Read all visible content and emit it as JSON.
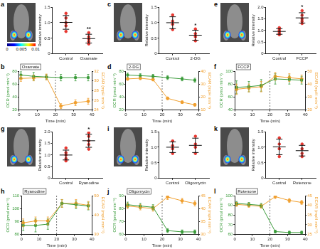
{
  "chart_data": [
    {
      "type": "scatter",
      "panel_label": "a",
      "categories": [
        "Control",
        "Oxamate"
      ],
      "points": [
        [
          1.3,
          1.15,
          1.0,
          0.9,
          0.72
        ],
        [
          0.68,
          0.55,
          0.48,
          0.4,
          0.32
        ]
      ],
      "means": [
        1.01,
        0.49
      ],
      "sd": [
        0.22,
        0.14
      ],
      "color": "#e8352e",
      "ylabel": "Relative intensity",
      "ylim": [
        0,
        1.5
      ],
      "yticks": [
        0,
        0.5,
        {
          "value": 1,
          "label": "1.0"
        },
        1.5
      ],
      "annotation": "**",
      "grid": false,
      "colorbar": {
        "range": [
          0,
          0.01
        ],
        "ticks": [
          0,
          0.005,
          0.01
        ]
      }
    },
    {
      "type": "line",
      "panel_label": "b",
      "annotation": "Oxamate",
      "injection": 20,
      "x": [
        1,
        8,
        15,
        23,
        31,
        38
      ],
      "xlabel": "Time (min)",
      "xlim": [
        0,
        40
      ],
      "xticks": [
        0,
        10,
        20,
        30,
        40
      ],
      "ylabel": "OCR (pmol min⁻¹)",
      "ylim": [
        20,
        80
      ],
      "yticks": [
        20,
        40,
        60,
        80
      ],
      "y2label": "ECAR (mpH min⁻¹)",
      "y2lim": [
        24,
        32
      ],
      "y2ticks": [
        24,
        26,
        28,
        30,
        32
      ],
      "grid": false,
      "series": [
        {
          "name": "OCR",
          "color": "#3a9b3a",
          "marker": "square",
          "axis": "y",
          "values": [
            74,
            72,
            71,
            70,
            70,
            70
          ],
          "errors": [
            5,
            6,
            4,
            5,
            5,
            5
          ]
        },
        {
          "name": "ECAR",
          "color": "#f0a030",
          "marker": "circle",
          "axis": "y2",
          "values": [
            30.5,
            30.6,
            30.8,
            24.8,
            25.5,
            25.8
          ],
          "errors": [
            0.6,
            0.6,
            0.6,
            0.5,
            0.6,
            0.6
          ]
        }
      ]
    },
    {
      "type": "scatter",
      "panel_label": "c",
      "categories": [
        "Control",
        "2-DG"
      ],
      "points": [
        [
          1.25,
          1.05,
          0.95,
          0.78
        ],
        [
          0.8,
          0.65,
          0.55,
          0.42
        ]
      ],
      "means": [
        1.0,
        0.6
      ],
      "sd": [
        0.19,
        0.16
      ],
      "color": "#e8352e",
      "ylabel": "Relative intensity",
      "ylim": [
        0,
        1.5
      ],
      "yticks": [
        0,
        0.5,
        {
          "value": 1,
          "label": "1.0"
        },
        1.5
      ],
      "annotation": "*",
      "grid": false
    },
    {
      "type": "line",
      "panel_label": "d",
      "annotation": "2-DG",
      "injection": 20,
      "x": [
        1,
        8,
        15,
        23,
        31,
        38
      ],
      "xlabel": "Time (min)",
      "xlim": [
        0,
        40
      ],
      "xticks": [
        0,
        10,
        20,
        30,
        40
      ],
      "ylabel": "OCR (pmol min⁻¹)",
      "ylim": [
        20,
        80
      ],
      "yticks": [
        20,
        40,
        60,
        80
      ],
      "y2label": "ECAR (mpH min⁻¹)",
      "y2lim": [
        10,
        40
      ],
      "y2ticks": [
        10,
        20,
        30,
        40
      ],
      "grid": false,
      "series": [
        {
          "name": "OCR",
          "color": "#3a9b3a",
          "marker": "square",
          "axis": "y",
          "values": [
            74,
            73,
            72,
            70,
            68,
            66
          ],
          "errors": [
            3,
            3,
            3,
            3,
            3,
            3
          ]
        },
        {
          "name": "ECAR",
          "color": "#f0a030",
          "marker": "circle",
          "axis": "y2",
          "values": [
            34,
            34.5,
            33.5,
            19,
            16,
            14
          ],
          "errors": [
            1,
            1,
            1,
            1,
            1,
            1
          ]
        }
      ]
    },
    {
      "type": "scatter",
      "panel_label": "e",
      "categories": [
        "Control",
        "FCCP"
      ],
      "points": [
        [
          1.12,
          1.02,
          0.95,
          0.88,
          0.82
        ],
        [
          1.85,
          1.65,
          1.5,
          1.4,
          1.3
        ]
      ],
      "means": [
        0.96,
        1.54
      ],
      "sd": [
        0.12,
        0.22
      ],
      "color": "#e8352e",
      "ylabel": "Relative intensity",
      "ylim": [
        0,
        2
      ],
      "yticks": [
        0,
        0.5,
        {
          "value": 1,
          "label": "1.0"
        },
        1.5,
        {
          "value": 2,
          "label": "2.0"
        }
      ],
      "annotation": "*",
      "grid": false
    },
    {
      "type": "line",
      "panel_label": "f",
      "annotation": "FCCP",
      "injection": 20,
      "x": [
        1,
        8,
        15,
        23,
        31,
        38
      ],
      "xlabel": "Time (min)",
      "xlim": [
        0,
        40
      ],
      "xticks": [
        0,
        10,
        20,
        30,
        40
      ],
      "ylabel": "OCR (pmol min⁻¹)",
      "ylim": [
        40,
        100
      ],
      "yticks": [
        40,
        60,
        80,
        100
      ],
      "y2label": "ECAR (mpH min⁻¹)",
      "y2lim": [
        20,
        50
      ],
      "y2ticks": [
        20,
        30,
        40,
        50
      ],
      "grid": false,
      "series": [
        {
          "name": "OCR",
          "color": "#3a9b3a",
          "marker": "square",
          "axis": "y",
          "values": [
            75,
            76,
            78,
            88,
            87,
            86
          ],
          "errors": [
            10,
            8,
            9,
            8,
            7,
            6
          ]
        },
        {
          "name": "ECAR",
          "color": "#f0a030",
          "marker": "circle",
          "axis": "y2",
          "values": [
            36,
            37,
            38,
            46,
            45,
            44
          ],
          "errors": [
            4,
            3,
            4,
            3,
            3,
            3
          ]
        }
      ]
    },
    {
      "type": "scatter",
      "panel_label": "g",
      "categories": [
        "Control",
        "Ryanodine"
      ],
      "points": [
        [
          1.3,
          1.1,
          1.0,
          0.85,
          0.75
        ],
        [
          1.95,
          1.8,
          1.6,
          1.45,
          1.25
        ]
      ],
      "means": [
        1.0,
        1.61
      ],
      "sd": [
        0.21,
        0.28
      ],
      "color": "#e8352e",
      "ylabel": "Relative intensity",
      "ylim": [
        0,
        2
      ],
      "yticks": [
        0,
        0.5,
        {
          "value": 1,
          "label": "1.0"
        },
        1.5,
        {
          "value": 2,
          "label": "2.0"
        }
      ],
      "annotation": "*",
      "grid": false
    },
    {
      "type": "line",
      "panel_label": "h",
      "annotation": "Ryanodine",
      "injection": 20,
      "x": [
        1,
        8,
        15,
        23,
        31,
        38
      ],
      "xlabel": "Time (min)",
      "xlim": [
        0,
        40
      ],
      "xticks": [
        0,
        10,
        20,
        30,
        40
      ],
      "ylabel": "OCR (pmol min⁻¹)",
      "ylim": [
        80,
        110
      ],
      "yticks": [
        80,
        90,
        100,
        110
      ],
      "y2label": "ECAR (mpH min⁻¹)",
      "y2lim": [
        30,
        50
      ],
      "y2ticks": [
        30,
        40,
        50
      ],
      "grid": false,
      "series": [
        {
          "name": "OCR",
          "color": "#3a9b3a",
          "marker": "square",
          "axis": "y",
          "values": [
            87,
            87,
            88,
            104,
            103,
            102
          ],
          "errors": [
            4,
            5,
            4,
            3,
            3,
            3
          ]
        },
        {
          "name": "ECAR",
          "color": "#f0a030",
          "marker": "circle",
          "axis": "y2",
          "values": [
            36,
            37,
            37,
            46,
            46,
            45
          ],
          "errors": [
            2,
            2,
            2,
            2,
            2,
            2
          ]
        }
      ]
    },
    {
      "type": "scatter",
      "panel_label": "i",
      "categories": [
        "Control",
        "Oligomycin"
      ],
      "points": [
        [
          1.2,
          1.05,
          0.95,
          0.8
        ],
        [
          1.35,
          1.1,
          1.0,
          0.8
        ]
      ],
      "means": [
        1.0,
        1.06
      ],
      "sd": [
        0.17,
        0.23
      ],
      "color": "#e8352e",
      "ylabel": "Relative intensity",
      "ylim": [
        0,
        1.5
      ],
      "yticks": [
        0,
        0.5,
        {
          "value": 1,
          "label": "1.0"
        },
        1.5
      ],
      "grid": false
    },
    {
      "type": "line",
      "panel_label": "j",
      "annotation": "Oligomycin",
      "injection": 20,
      "x": [
        1,
        8,
        15,
        23,
        31,
        38
      ],
      "xlabel": "Time (min)",
      "xlim": [
        0,
        40
      ],
      "xticks": [
        0,
        10,
        20,
        30,
        40
      ],
      "ylabel": "OCR (pmol min⁻¹)",
      "ylim": [
        60,
        90
      ],
      "yticks": [
        60,
        70,
        80,
        90
      ],
      "y2label": "ECAR (mpH min⁻¹)",
      "y2lim": [
        30,
        45
      ],
      "y2ticks": [
        30,
        35,
        40,
        45
      ],
      "grid": false,
      "series": [
        {
          "name": "OCR",
          "color": "#3a9b3a",
          "marker": "square",
          "axis": "y",
          "values": [
            83,
            82,
            81,
            63,
            62,
            62
          ],
          "errors": [
            2,
            2,
            2,
            1.5,
            1.5,
            1.5
          ]
        },
        {
          "name": "ECAR",
          "color": "#f0a030",
          "marker": "circle",
          "axis": "y2",
          "values": [
            41,
            40.5,
            40,
            44.5,
            43,
            42
          ],
          "errors": [
            1,
            1,
            1,
            1,
            1,
            1
          ]
        }
      ]
    },
    {
      "type": "scatter",
      "panel_label": "k",
      "categories": [
        "Control",
        "Rotenone"
      ],
      "points": [
        [
          1.3,
          1.1,
          0.95,
          0.7
        ],
        [
          1.1,
          0.95,
          0.8,
          0.7
        ]
      ],
      "means": [
        1.01,
        0.89
      ],
      "sd": [
        0.25,
        0.17
      ],
      "color": "#e8352e",
      "ylabel": "Relative intensity",
      "ylim": [
        0,
        1.5
      ],
      "yticks": [
        0,
        0.5,
        {
          "value": 1,
          "label": "1.0"
        },
        1.5
      ],
      "grid": false
    },
    {
      "type": "line",
      "panel_label": "l",
      "annotation": "Rotenone",
      "injection": 20,
      "x": [
        1,
        8,
        15,
        23,
        31,
        38
      ],
      "xlabel": "Time (min)",
      "xlim": [
        0,
        40
      ],
      "xticks": [
        0,
        10,
        20,
        30,
        40
      ],
      "ylabel": "OCR (pmol min⁻¹)",
      "ylim": [
        60,
        100
      ],
      "yticks": [
        60,
        70,
        80,
        90,
        100
      ],
      "y2label": "ECAR (mpH min⁻¹)",
      "y2lim": [
        25,
        45
      ],
      "y2ticks": [
        25,
        30,
        35,
        40,
        45
      ],
      "grid": false,
      "series": [
        {
          "name": "OCR",
          "color": "#3a9b3a",
          "marker": "square",
          "axis": "y",
          "values": [
            92,
            91,
            90,
            63,
            62,
            62
          ],
          "errors": [
            2,
            2,
            2,
            1.5,
            1.5,
            1.5
          ]
        },
        {
          "name": "ECAR",
          "color": "#f0a030",
          "marker": "circle",
          "axis": "y2",
          "values": [
            40.5,
            40,
            39.5,
            44.5,
            42.5,
            41.5
          ],
          "errors": [
            1,
            1,
            1,
            1,
            1,
            1
          ]
        }
      ]
    }
  ]
}
